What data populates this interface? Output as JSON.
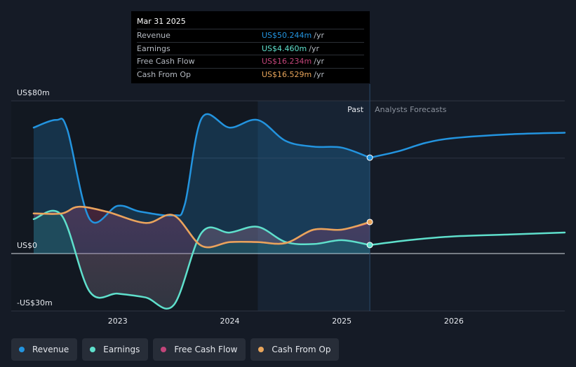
{
  "chart_data": {
    "type": "line",
    "title": "",
    "xlabel": "",
    "ylabel": "",
    "ylim": [
      -30,
      80
    ],
    "y_ticks": [
      {
        "value": 80,
        "label": "US$80m"
      },
      {
        "value": 0,
        "label": "US$0"
      },
      {
        "value": -30,
        "label": "-US$30m"
      }
    ],
    "x_range": [
      2022.25,
      2026.99
    ],
    "x_ticks": [
      {
        "value": 2023.0,
        "label": "2023"
      },
      {
        "value": 2024.0,
        "label": "2024"
      },
      {
        "value": 2025.0,
        "label": "2025"
      },
      {
        "value": 2026.0,
        "label": "2026"
      }
    ],
    "past_label": "Past",
    "forecast_label": "Analysts Forecasts",
    "highlight_start": 2024.25,
    "divider_x": 2025.25,
    "series": [
      {
        "name": "Revenue",
        "color": "#2394df",
        "fill": true,
        "points": [
          [
            2022.25,
            66
          ],
          [
            2022.45,
            70
          ],
          [
            2022.55,
            65
          ],
          [
            2022.75,
            18
          ],
          [
            2023.0,
            25
          ],
          [
            2023.2,
            22
          ],
          [
            2023.5,
            20
          ],
          [
            2023.6,
            26
          ],
          [
            2023.75,
            71
          ],
          [
            2024.0,
            66
          ],
          [
            2024.25,
            70
          ],
          [
            2024.5,
            59
          ],
          [
            2024.75,
            56
          ],
          [
            2025.0,
            55.5
          ],
          [
            2025.25,
            50.244
          ]
        ]
      },
      {
        "name": "Revenue Forecast",
        "color": "#2394df",
        "fill": false,
        "points": [
          [
            2025.25,
            50.244
          ],
          [
            2025.5,
            53.5
          ],
          [
            2025.75,
            58
          ],
          [
            2026.0,
            60.5
          ],
          [
            2026.5,
            62.5
          ],
          [
            2026.99,
            63.3
          ]
        ]
      },
      {
        "name": "Earnings",
        "color": "#5fe0cc",
        "fill": true,
        "points": [
          [
            2022.25,
            18
          ],
          [
            2022.5,
            20
          ],
          [
            2022.75,
            -20
          ],
          [
            2023.0,
            -21
          ],
          [
            2023.25,
            -23
          ],
          [
            2023.5,
            -27
          ],
          [
            2023.75,
            11
          ],
          [
            2024.0,
            11
          ],
          [
            2024.25,
            14
          ],
          [
            2024.5,
            6
          ],
          [
            2024.75,
            5
          ],
          [
            2025.0,
            7
          ],
          [
            2025.25,
            4.46
          ]
        ]
      },
      {
        "name": "Earnings Forecast",
        "color": "#5fe0cc",
        "fill": false,
        "points": [
          [
            2025.25,
            4.46
          ],
          [
            2025.6,
            7
          ],
          [
            2026.0,
            9
          ],
          [
            2026.5,
            10
          ],
          [
            2026.99,
            11
          ]
        ]
      },
      {
        "name": "Free Cash Flow",
        "color": "#c2457a",
        "fill": false,
        "points": [
          [
            2022.25,
            21
          ],
          [
            2022.5,
            21
          ],
          [
            2022.65,
            24.5
          ],
          [
            2022.9,
            22
          ],
          [
            2023.25,
            16
          ],
          [
            2023.5,
            20
          ],
          [
            2023.75,
            4
          ],
          [
            2024.0,
            6
          ],
          [
            2024.25,
            6
          ],
          [
            2024.5,
            5.5
          ],
          [
            2024.75,
            12.5
          ],
          [
            2025.0,
            12.5
          ],
          [
            2025.25,
            16.234
          ]
        ]
      },
      {
        "name": "Cash From Op",
        "color": "#e8a55b",
        "fill": false,
        "points": [
          [
            2022.25,
            21
          ],
          [
            2022.5,
            21
          ],
          [
            2022.65,
            24.5
          ],
          [
            2022.9,
            22
          ],
          [
            2023.25,
            16
          ],
          [
            2023.5,
            20
          ],
          [
            2023.75,
            4
          ],
          [
            2024.0,
            6
          ],
          [
            2024.25,
            6
          ],
          [
            2024.5,
            5.5
          ],
          [
            2024.75,
            12.5
          ],
          [
            2025.0,
            12.5
          ],
          [
            2025.25,
            16.529
          ]
        ]
      }
    ],
    "end_markers": [
      {
        "series": "Revenue",
        "x": 2025.25,
        "y": 50.244,
        "color": "#2394df"
      },
      {
        "series": "Earnings",
        "x": 2025.25,
        "y": 4.46,
        "color": "#5fe0cc"
      },
      {
        "series": "Cash From Op",
        "x": 2025.25,
        "y": 16.529,
        "color": "#e8a55b"
      }
    ]
  },
  "tooltip": {
    "date": "Mar 31 2025",
    "rows": [
      {
        "label": "Revenue",
        "value": "US$50.244m",
        "unit": "/yr",
        "color": "#2394df"
      },
      {
        "label": "Earnings",
        "value": "US$4.460m",
        "unit": "/yr",
        "color": "#5fe0cc"
      },
      {
        "label": "Free Cash Flow",
        "value": "US$16.234m",
        "unit": "/yr",
        "color": "#c2457a"
      },
      {
        "label": "Cash From Op",
        "value": "US$16.529m",
        "unit": "/yr",
        "color": "#e8a55b"
      }
    ]
  },
  "legend": [
    {
      "label": "Revenue",
      "color": "#2394df"
    },
    {
      "label": "Earnings",
      "color": "#5fe0cc"
    },
    {
      "label": "Free Cash Flow",
      "color": "#c2457a"
    },
    {
      "label": "Cash From Op",
      "color": "#e8a55b"
    }
  ]
}
